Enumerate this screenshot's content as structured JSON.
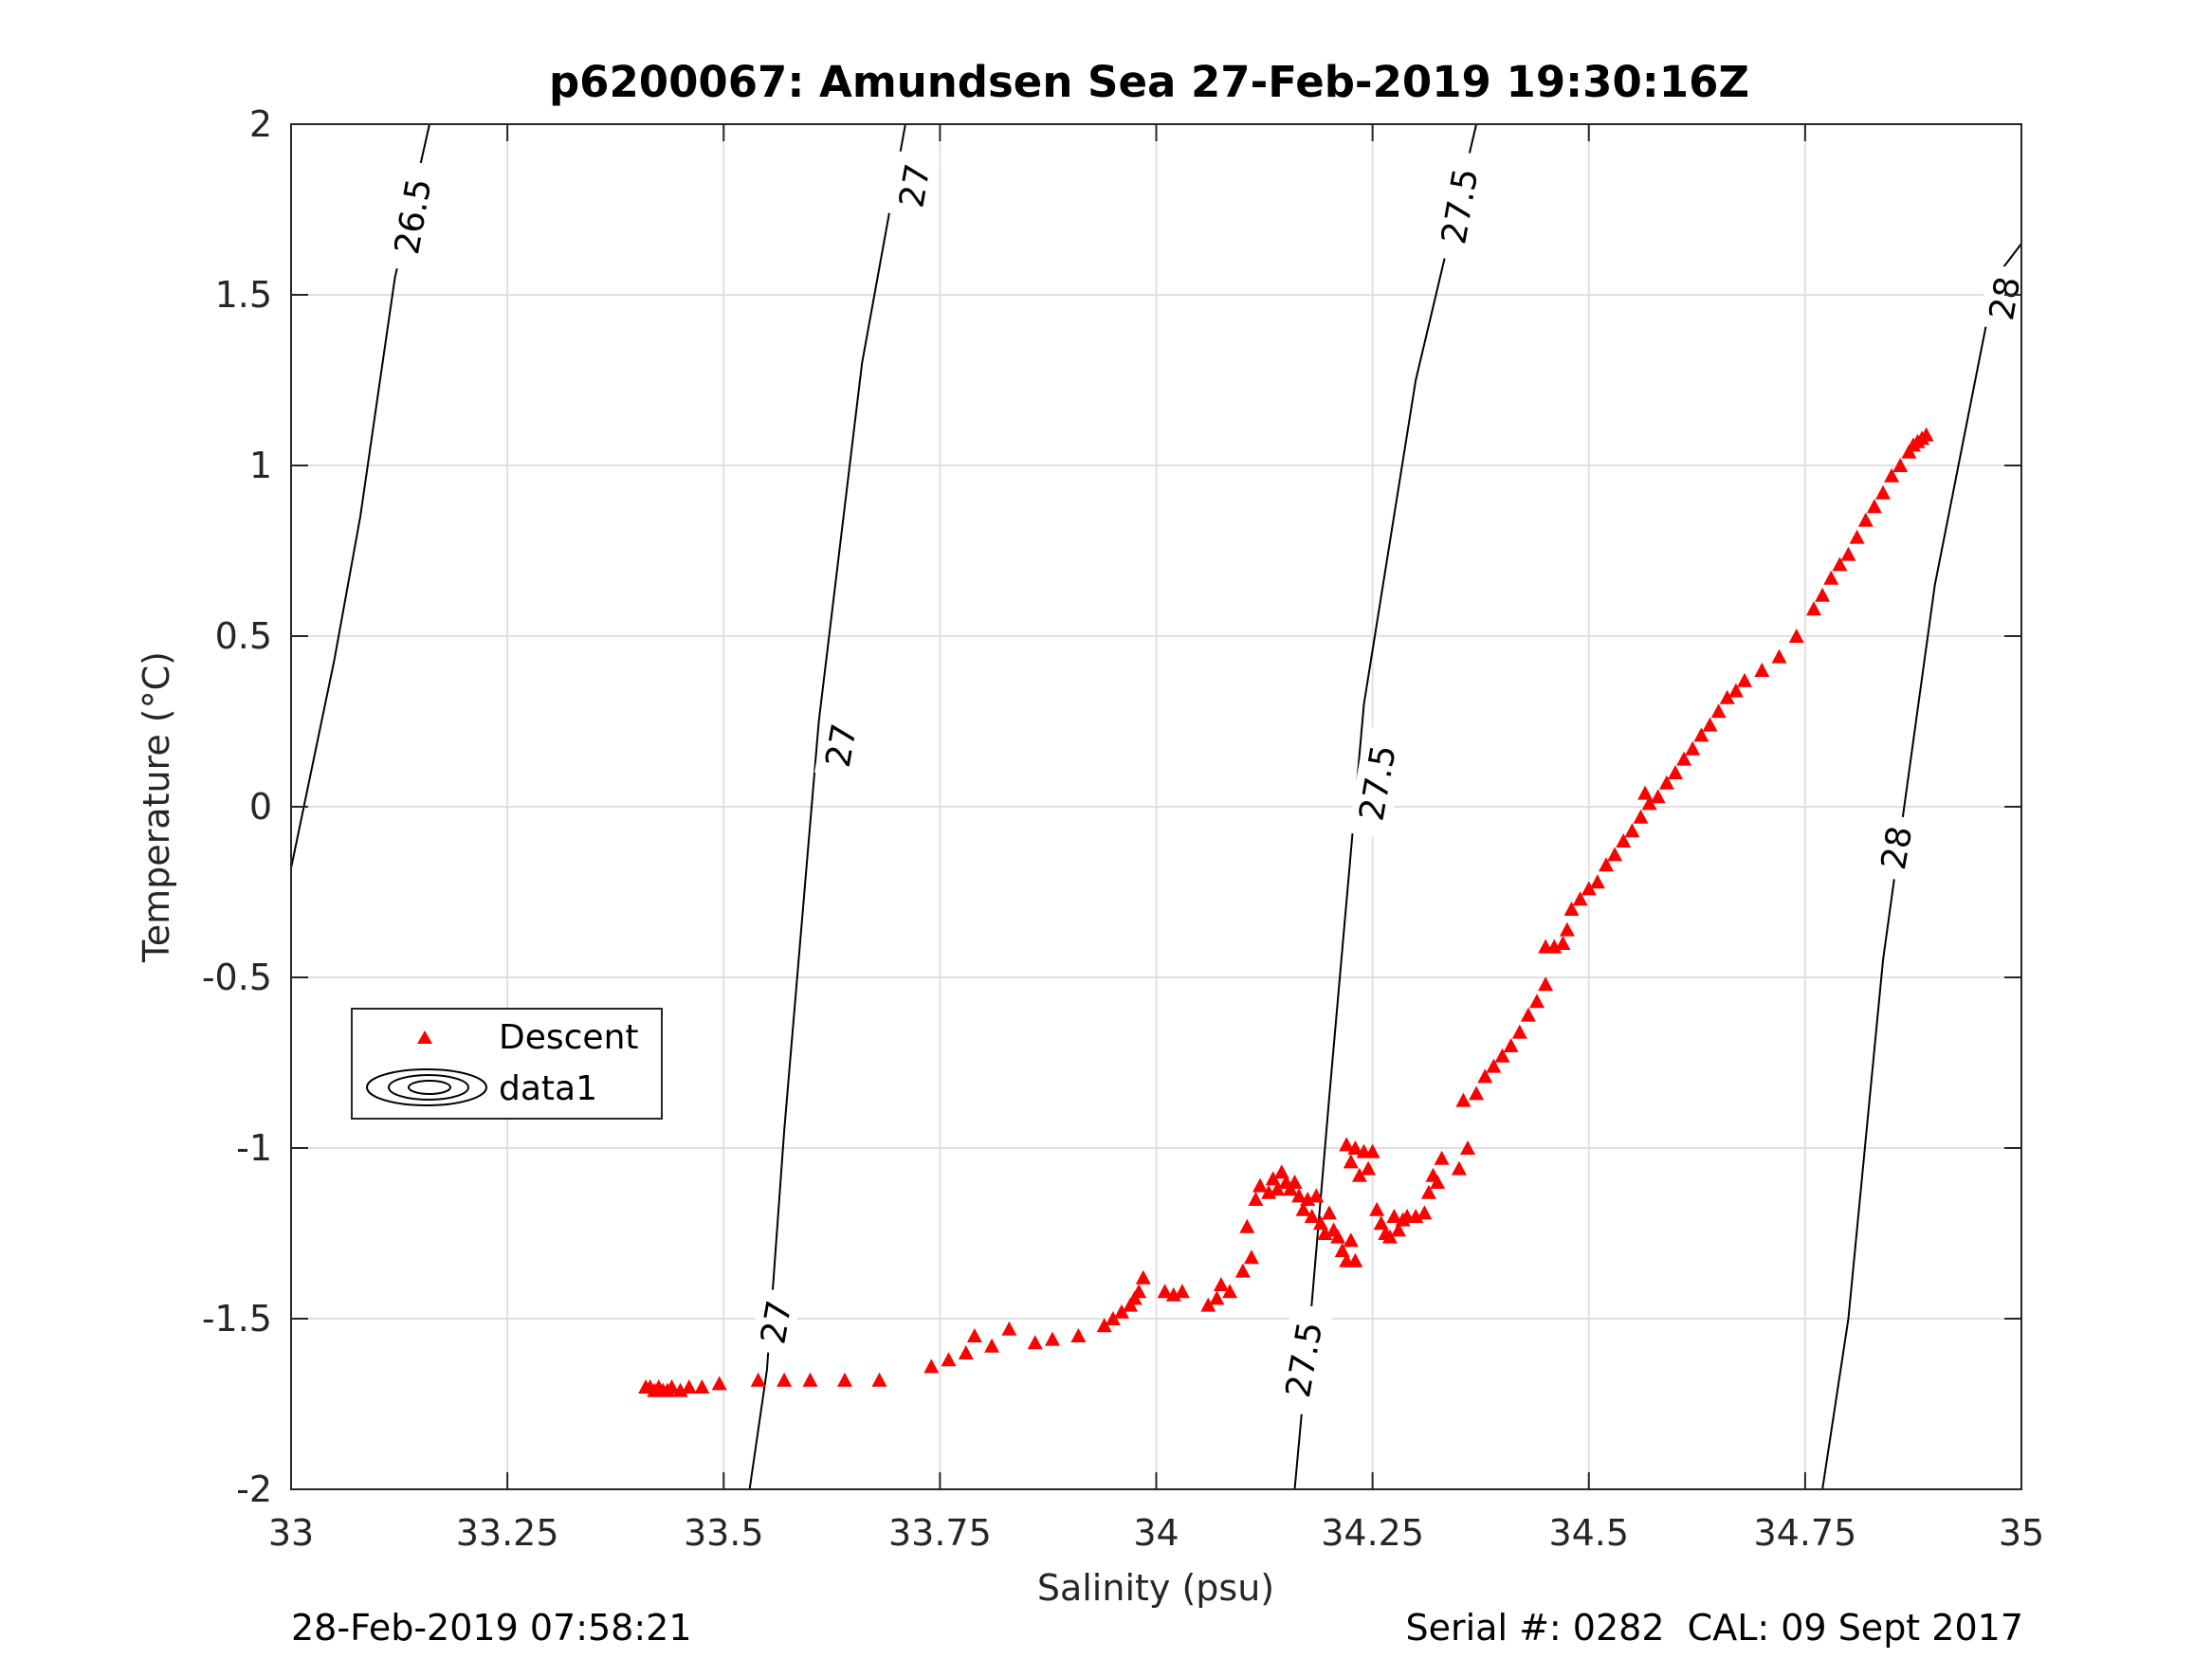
{
  "chart_data": {
    "type": "scatter",
    "title": "p6200067: Amundsen Sea 27-Feb-2019 19:30:16Z",
    "xlabel": "Salinity (psu)",
    "ylabel": "Temperature (°C)",
    "xlim": [
      33,
      35
    ],
    "ylim": [
      -2,
      2
    ],
    "x_ticks": [
      33,
      33.25,
      33.5,
      33.75,
      34,
      34.25,
      34.5,
      34.75,
      35
    ],
    "x_tick_labels": [
      "33",
      "33.25",
      "33.5",
      "33.75",
      "34",
      "34.25",
      "34.5",
      "34.75",
      "35"
    ],
    "y_ticks": [
      -2,
      -1.5,
      -1,
      -0.5,
      0,
      0.5,
      1,
      1.5,
      2
    ],
    "y_tick_labels": [
      "-2",
      "-1.5",
      "-1",
      "-0.5",
      "0",
      "0.5",
      "1",
      "1.5",
      "2"
    ],
    "grid": true,
    "legend_position": "lower-left",
    "legend": [
      {
        "label": "Descent",
        "marker": "triangle",
        "color": "#ff0000"
      },
      {
        "label": "data1",
        "marker": "contour",
        "color": "#000000"
      }
    ],
    "series": [
      {
        "name": "Descent",
        "color": "#ff0000",
        "marker": "triangle",
        "points": [
          [
            33.41,
            -1.7
          ],
          [
            33.415,
            -1.7
          ],
          [
            33.42,
            -1.71
          ],
          [
            33.425,
            -1.7
          ],
          [
            33.43,
            -1.71
          ],
          [
            33.435,
            -1.71
          ],
          [
            33.44,
            -1.7
          ],
          [
            33.45,
            -1.71
          ],
          [
            33.46,
            -1.7
          ],
          [
            33.475,
            -1.7
          ],
          [
            33.495,
            -1.69
          ],
          [
            33.54,
            -1.68
          ],
          [
            33.57,
            -1.68
          ],
          [
            33.6,
            -1.68
          ],
          [
            33.64,
            -1.68
          ],
          [
            33.68,
            -1.68
          ],
          [
            33.74,
            -1.64
          ],
          [
            33.76,
            -1.62
          ],
          [
            33.78,
            -1.6
          ],
          [
            33.79,
            -1.55
          ],
          [
            33.81,
            -1.58
          ],
          [
            33.83,
            -1.53
          ],
          [
            33.86,
            -1.57
          ],
          [
            33.88,
            -1.56
          ],
          [
            33.91,
            -1.55
          ],
          [
            33.94,
            -1.52
          ],
          [
            33.95,
            -1.5
          ],
          [
            33.96,
            -1.48
          ],
          [
            33.97,
            -1.46
          ],
          [
            33.975,
            -1.44
          ],
          [
            33.98,
            -1.42
          ],
          [
            33.985,
            -1.38
          ],
          [
            34.01,
            -1.42
          ],
          [
            34.02,
            -1.43
          ],
          [
            34.03,
            -1.42
          ],
          [
            34.06,
            -1.46
          ],
          [
            34.07,
            -1.44
          ],
          [
            34.075,
            -1.4
          ],
          [
            34.085,
            -1.42
          ],
          [
            34.1,
            -1.36
          ],
          [
            34.11,
            -1.32
          ],
          [
            34.105,
            -1.23
          ],
          [
            34.115,
            -1.15
          ],
          [
            34.12,
            -1.11
          ],
          [
            34.13,
            -1.13
          ],
          [
            34.135,
            -1.09
          ],
          [
            34.14,
            -1.12
          ],
          [
            34.145,
            -1.07
          ],
          [
            34.15,
            -1.1
          ],
          [
            34.155,
            -1.12
          ],
          [
            34.16,
            -1.1
          ],
          [
            34.165,
            -1.14
          ],
          [
            34.17,
            -1.18
          ],
          [
            34.175,
            -1.15
          ],
          [
            34.18,
            -1.2
          ],
          [
            34.185,
            -1.14
          ],
          [
            34.19,
            -1.22
          ],
          [
            34.195,
            -1.25
          ],
          [
            34.2,
            -1.19
          ],
          [
            34.205,
            -1.24
          ],
          [
            34.21,
            -1.26
          ],
          [
            34.215,
            -1.3
          ],
          [
            34.22,
            -1.33
          ],
          [
            34.225,
            -1.27
          ],
          [
            34.23,
            -1.33
          ],
          [
            34.22,
            -0.99
          ],
          [
            34.225,
            -1.04
          ],
          [
            34.23,
            -1.0
          ],
          [
            34.235,
            -1.08
          ],
          [
            34.24,
            -1.01
          ],
          [
            34.245,
            -1.06
          ],
          [
            34.25,
            -1.01
          ],
          [
            34.255,
            -1.18
          ],
          [
            34.26,
            -1.22
          ],
          [
            34.265,
            -1.25
          ],
          [
            34.27,
            -1.26
          ],
          [
            34.275,
            -1.2
          ],
          [
            34.28,
            -1.24
          ],
          [
            34.285,
            -1.21
          ],
          [
            34.29,
            -1.2
          ],
          [
            34.3,
            -1.2
          ],
          [
            34.31,
            -1.19
          ],
          [
            34.315,
            -1.13
          ],
          [
            34.32,
            -1.08
          ],
          [
            34.325,
            -1.1
          ],
          [
            34.33,
            -1.03
          ],
          [
            34.35,
            -1.06
          ],
          [
            34.36,
            -1.0
          ],
          [
            34.355,
            -0.86
          ],
          [
            34.37,
            -0.84
          ],
          [
            34.38,
            -0.79
          ],
          [
            34.39,
            -0.76
          ],
          [
            34.4,
            -0.73
          ],
          [
            34.41,
            -0.7
          ],
          [
            34.42,
            -0.66
          ],
          [
            34.43,
            -0.61
          ],
          [
            34.44,
            -0.57
          ],
          [
            34.45,
            -0.52
          ],
          [
            34.45,
            -0.41
          ],
          [
            34.46,
            -0.41
          ],
          [
            34.47,
            -0.4
          ],
          [
            34.475,
            -0.36
          ],
          [
            34.48,
            -0.3
          ],
          [
            34.49,
            -0.27
          ],
          [
            34.5,
            -0.24
          ],
          [
            34.51,
            -0.22
          ],
          [
            34.52,
            -0.17
          ],
          [
            34.53,
            -0.14
          ],
          [
            34.54,
            -0.1
          ],
          [
            34.55,
            -0.07
          ],
          [
            34.56,
            -0.03
          ],
          [
            34.565,
            0.04
          ],
          [
            34.57,
            0.01
          ],
          [
            34.58,
            0.03
          ],
          [
            34.59,
            0.07
          ],
          [
            34.6,
            0.1
          ],
          [
            34.61,
            0.14
          ],
          [
            34.62,
            0.17
          ],
          [
            34.63,
            0.21
          ],
          [
            34.64,
            0.24
          ],
          [
            34.65,
            0.28
          ],
          [
            34.66,
            0.32
          ],
          [
            34.67,
            0.34
          ],
          [
            34.68,
            0.37
          ],
          [
            34.7,
            0.4
          ],
          [
            34.72,
            0.44
          ],
          [
            34.74,
            0.5
          ],
          [
            34.76,
            0.58
          ],
          [
            34.77,
            0.62
          ],
          [
            34.78,
            0.67
          ],
          [
            34.79,
            0.71
          ],
          [
            34.8,
            0.74
          ],
          [
            34.81,
            0.79
          ],
          [
            34.82,
            0.84
          ],
          [
            34.83,
            0.88
          ],
          [
            34.84,
            0.92
          ],
          [
            34.85,
            0.97
          ],
          [
            34.86,
            1.0
          ],
          [
            34.87,
            1.04
          ],
          [
            34.875,
            1.06
          ],
          [
            34.88,
            1.07
          ],
          [
            34.885,
            1.08
          ],
          [
            34.89,
            1.09
          ]
        ]
      }
    ],
    "isopycnals": [
      {
        "label": "26.5",
        "points": [
          [
            33.0,
            -0.18
          ],
          [
            33.05,
            0.43
          ],
          [
            33.08,
            0.85
          ],
          [
            33.12,
            1.55
          ],
          [
            33.16,
            2.0
          ]
        ]
      },
      {
        "label": "27",
        "points": [
          [
            33.53,
            -2.0
          ],
          [
            33.55,
            -1.65
          ],
          [
            33.57,
            -0.95
          ],
          [
            33.61,
            0.25
          ],
          [
            33.66,
            1.3
          ],
          [
            33.71,
            2.0
          ]
        ]
      },
      {
        "label": "27.5",
        "points": [
          [
            34.16,
            -2.0
          ],
          [
            34.18,
            -1.45
          ],
          [
            34.2,
            -0.85
          ],
          [
            34.24,
            0.3
          ],
          [
            34.3,
            1.25
          ],
          [
            34.37,
            2.0
          ]
        ]
      },
      {
        "label": "28",
        "points": [
          [
            34.77,
            -2.0
          ],
          [
            34.8,
            -1.5
          ],
          [
            34.84,
            -0.45
          ],
          [
            34.9,
            0.65
          ],
          [
            34.97,
            1.55
          ],
          [
            35.0,
            1.65
          ]
        ]
      }
    ],
    "contour_label_positions": [
      {
        "label": "26.5",
        "x": 33.14,
        "y": 1.73
      },
      {
        "label": "27",
        "x": 33.72,
        "y": 1.82
      },
      {
        "label": "27",
        "x": 33.635,
        "y": 0.18
      },
      {
        "label": "27",
        "x": 33.56,
        "y": -1.51
      },
      {
        "label": "27.5",
        "x": 34.35,
        "y": 1.76
      },
      {
        "label": "27.5",
        "x": 34.255,
        "y": 0.07
      },
      {
        "label": "27.5",
        "x": 34.17,
        "y": -1.62
      },
      {
        "label": "28",
        "x": 34.98,
        "y": 1.49
      },
      {
        "label": "28",
        "x": 34.855,
        "y": -0.12
      }
    ]
  },
  "footer": {
    "timestamp": "28-Feb-2019 07:58:21",
    "serial": "Serial #: 0282  CAL: 09 Sept 2017"
  }
}
